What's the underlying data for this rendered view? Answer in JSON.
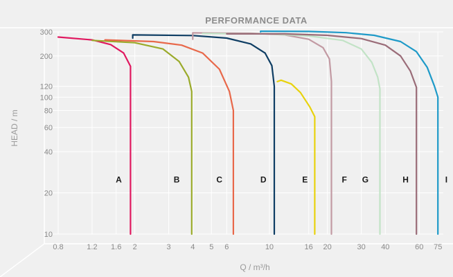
{
  "chart_data": {
    "type": "line",
    "title": "PERFORMANCE DATA",
    "xlabel": "Q / m³/h",
    "ylabel": "HEAD / m",
    "x_scale": "log",
    "y_scale": "log",
    "xlim": [
      0.8,
      80
    ],
    "ylim": [
      10,
      300
    ],
    "x_ticks": [
      {
        "value": 0.8,
        "label": "0.8"
      },
      {
        "value": 1.2,
        "label": "1.2"
      },
      {
        "value": 1.6,
        "label": "1.6"
      },
      {
        "value": 2,
        "label": "2"
      },
      {
        "value": 3,
        "label": "3"
      },
      {
        "value": 4,
        "label": "4"
      },
      {
        "value": 5,
        "label": "5"
      },
      {
        "value": 6,
        "label": "6"
      },
      {
        "value": 10,
        "label": "10"
      },
      {
        "value": 16,
        "label": "16"
      },
      {
        "value": 20,
        "label": "20"
      },
      {
        "value": 30,
        "label": "30"
      },
      {
        "value": 40,
        "label": "40"
      },
      {
        "value": 60,
        "label": "60"
      },
      {
        "value": 75,
        "label": "75"
      }
    ],
    "y_ticks": [
      {
        "value": 10,
        "label": "10"
      },
      {
        "value": 20,
        "label": "20"
      },
      {
        "value": 40,
        "label": "40"
      },
      {
        "value": 60,
        "label": "60"
      },
      {
        "value": 80,
        "label": "80"
      },
      {
        "value": 100,
        "label": "100"
      },
      {
        "value": 120,
        "label": "120"
      },
      {
        "value": 200,
        "label": "200"
      },
      {
        "value": 300,
        "label": "300"
      }
    ],
    "grid": true,
    "series": [
      {
        "name": "A",
        "color": "#e0185f",
        "label_at": [
          1.65,
          25
        ],
        "points": [
          [
            0.8,
            275
          ],
          [
            1.2,
            262
          ],
          [
            1.5,
            242
          ],
          [
            1.75,
            210
          ],
          [
            1.9,
            168
          ],
          [
            1.9,
            10
          ]
        ]
      },
      {
        "name": "B",
        "color": "#9aaa2a",
        "label_at": [
          3.3,
          25
        ],
        "points": [
          [
            1.2,
            260
          ],
          [
            2,
            250
          ],
          [
            2.8,
            225
          ],
          [
            3.4,
            182
          ],
          [
            3.8,
            140
          ],
          [
            3.95,
            110
          ],
          [
            3.95,
            10
          ]
        ]
      },
      {
        "name": "C",
        "color": "#e8684a",
        "label_at": [
          5.5,
          25
        ],
        "points": [
          [
            1.4,
            262
          ],
          [
            2.5,
            255
          ],
          [
            3.5,
            240
          ],
          [
            4.5,
            210
          ],
          [
            5.5,
            160
          ],
          [
            6.2,
            110
          ],
          [
            6.5,
            80
          ],
          [
            6.5,
            10
          ]
        ]
      },
      {
        "name": "D",
        "color": "#0e3d63",
        "label_at": [
          9.3,
          25
        ],
        "points": [
          [
            1.95,
            270
          ],
          [
            1.95,
            285
          ],
          [
            4,
            282
          ],
          [
            6,
            270
          ],
          [
            8,
            245
          ],
          [
            9.5,
            210
          ],
          [
            10.3,
            170
          ],
          [
            10.6,
            120
          ],
          [
            10.6,
            10
          ]
        ]
      },
      {
        "name": "E",
        "color": "#e8d20c",
        "label_at": [
          15.3,
          25
        ],
        "points": [
          [
            11,
            130
          ],
          [
            11.5,
            133
          ],
          [
            13,
            125
          ],
          [
            14.5,
            108
          ],
          [
            16.2,
            85
          ],
          [
            17.2,
            72
          ],
          [
            17.2,
            10
          ]
        ]
      },
      {
        "name": "F",
        "color": "#c29aa3",
        "label_at": [
          24.5,
          25
        ],
        "points": [
          [
            4,
            265
          ],
          [
            4,
            295
          ],
          [
            8,
            293
          ],
          [
            12,
            285
          ],
          [
            16,
            265
          ],
          [
            19,
            230
          ],
          [
            20.5,
            190
          ],
          [
            21,
            130
          ],
          [
            21,
            10
          ]
        ]
      },
      {
        "name": "G",
        "color": "#c2e3c6",
        "label_at": [
          31.5,
          25
        ],
        "points": [
          [
            4.5,
            292
          ],
          [
            10,
            290
          ],
          [
            16,
            280
          ],
          [
            24,
            260
          ],
          [
            30,
            225
          ],
          [
            34,
            180
          ],
          [
            36.5,
            140
          ],
          [
            37.5,
            115
          ],
          [
            37.5,
            10
          ]
        ]
      },
      {
        "name": "H",
        "color": "#9a6c78",
        "label_at": [
          51,
          25
        ],
        "points": [
          [
            6,
            290
          ],
          [
            12,
            290
          ],
          [
            20,
            283
          ],
          [
            30,
            268
          ],
          [
            40,
            240
          ],
          [
            48,
            200
          ],
          [
            54,
            155
          ],
          [
            58,
            118
          ],
          [
            58,
            10
          ]
        ]
      },
      {
        "name": "I",
        "color": "#1e9ac8",
        "label_at": [
          83,
          25
        ],
        "points": [
          [
            9,
            300
          ],
          [
            9,
            303
          ],
          [
            16,
            302
          ],
          [
            25,
            296
          ],
          [
            35,
            283
          ],
          [
            48,
            255
          ],
          [
            58,
            215
          ],
          [
            66,
            165
          ],
          [
            72,
            120
          ],
          [
            75,
            100
          ],
          [
            75,
            10
          ]
        ]
      }
    ]
  }
}
